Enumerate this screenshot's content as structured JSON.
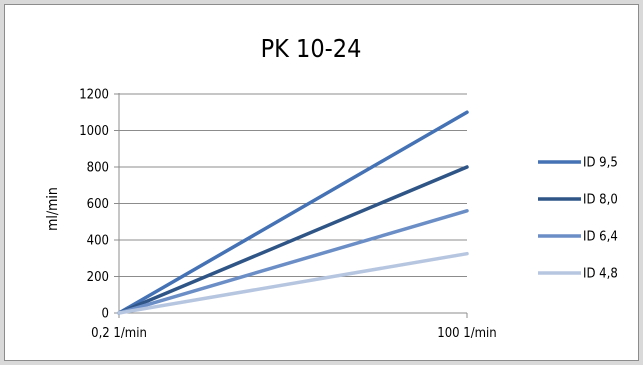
{
  "chart_data": {
    "type": "line",
    "title": "PK 10-24",
    "xlabel": "",
    "ylabel": "ml/min",
    "categories": [
      "0,2 1/min",
      "100 1/min"
    ],
    "ylim": [
      0,
      1200
    ],
    "yticks": [
      0,
      200,
      400,
      600,
      800,
      1000,
      1200
    ],
    "grid": "horizontal",
    "legend_position": "right",
    "series": [
      {
        "name": "ID 9,5",
        "color": "#4472b4",
        "values": [
          0,
          1100
        ]
      },
      {
        "name": "ID 8,0",
        "color": "#2f5587",
        "values": [
          0,
          800
        ]
      },
      {
        "name": "ID 6,4",
        "color": "#6b8ec7",
        "values": [
          0,
          560
        ]
      },
      {
        "name": "ID 4,8",
        "color": "#b7c6e0",
        "values": [
          0,
          325
        ]
      }
    ]
  }
}
